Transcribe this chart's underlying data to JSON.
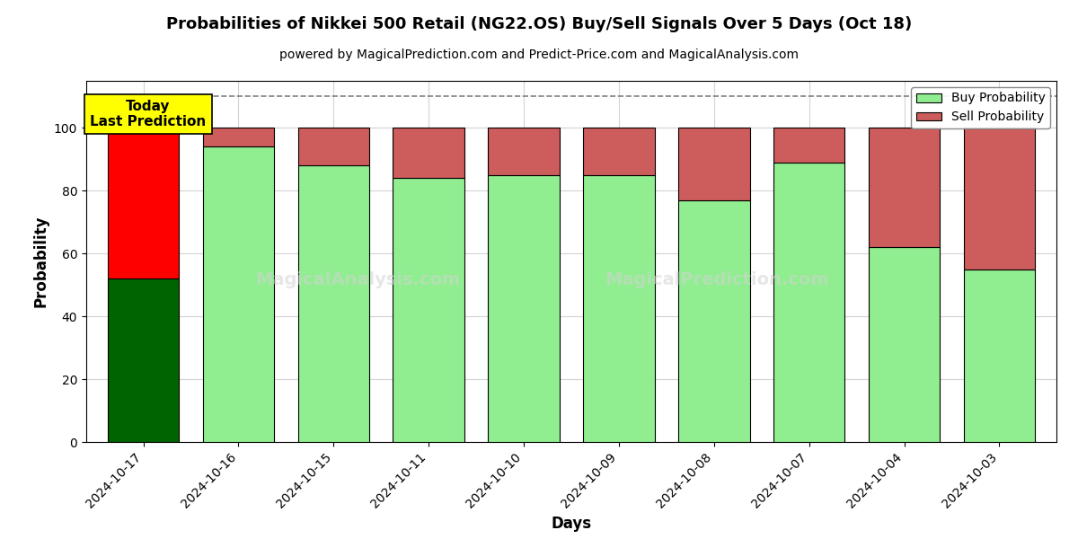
{
  "title": "Probabilities of Nikkei 500 Retail (NG22.OS) Buy/Sell Signals Over 5 Days (Oct 18)",
  "subtitle": "powered by MagicalPrediction.com and Predict-Price.com and MagicalAnalysis.com",
  "xlabel": "Days",
  "ylabel": "Probability",
  "dates": [
    "2024-10-17",
    "2024-10-16",
    "2024-10-15",
    "2024-10-11",
    "2024-10-10",
    "2024-10-09",
    "2024-10-08",
    "2024-10-07",
    "2024-10-04",
    "2024-10-03"
  ],
  "buy_probs": [
    52,
    94,
    88,
    84,
    85,
    85,
    77,
    89,
    62,
    55
  ],
  "sell_probs": [
    48,
    6,
    12,
    16,
    15,
    15,
    23,
    11,
    38,
    45
  ],
  "buy_colors": [
    "#006400",
    "#90EE90",
    "#90EE90",
    "#90EE90",
    "#90EE90",
    "#90EE90",
    "#90EE90",
    "#90EE90",
    "#90EE90",
    "#90EE90"
  ],
  "sell_colors": [
    "#FF0000",
    "#CD5C5C",
    "#CD5C5C",
    "#CD5C5C",
    "#CD5C5C",
    "#CD5C5C",
    "#CD5C5C",
    "#CD5C5C",
    "#CD5C5C",
    "#CD5C5C"
  ],
  "ylim": [
    0,
    115
  ],
  "yticks": [
    0,
    20,
    40,
    60,
    80,
    100
  ],
  "dashed_line_y": 110,
  "legend_buy_color": "#90EE90",
  "legend_sell_color": "#CD5C5C",
  "today_label_bg": "#FFFF00",
  "today_text": "Today\nLast Prediction",
  "watermark1": "MagicalAnalysis.com",
  "watermark2": "MagicalPrediction.com",
  "bar_width": 0.75,
  "figsize": [
    12,
    6
  ],
  "dpi": 100
}
